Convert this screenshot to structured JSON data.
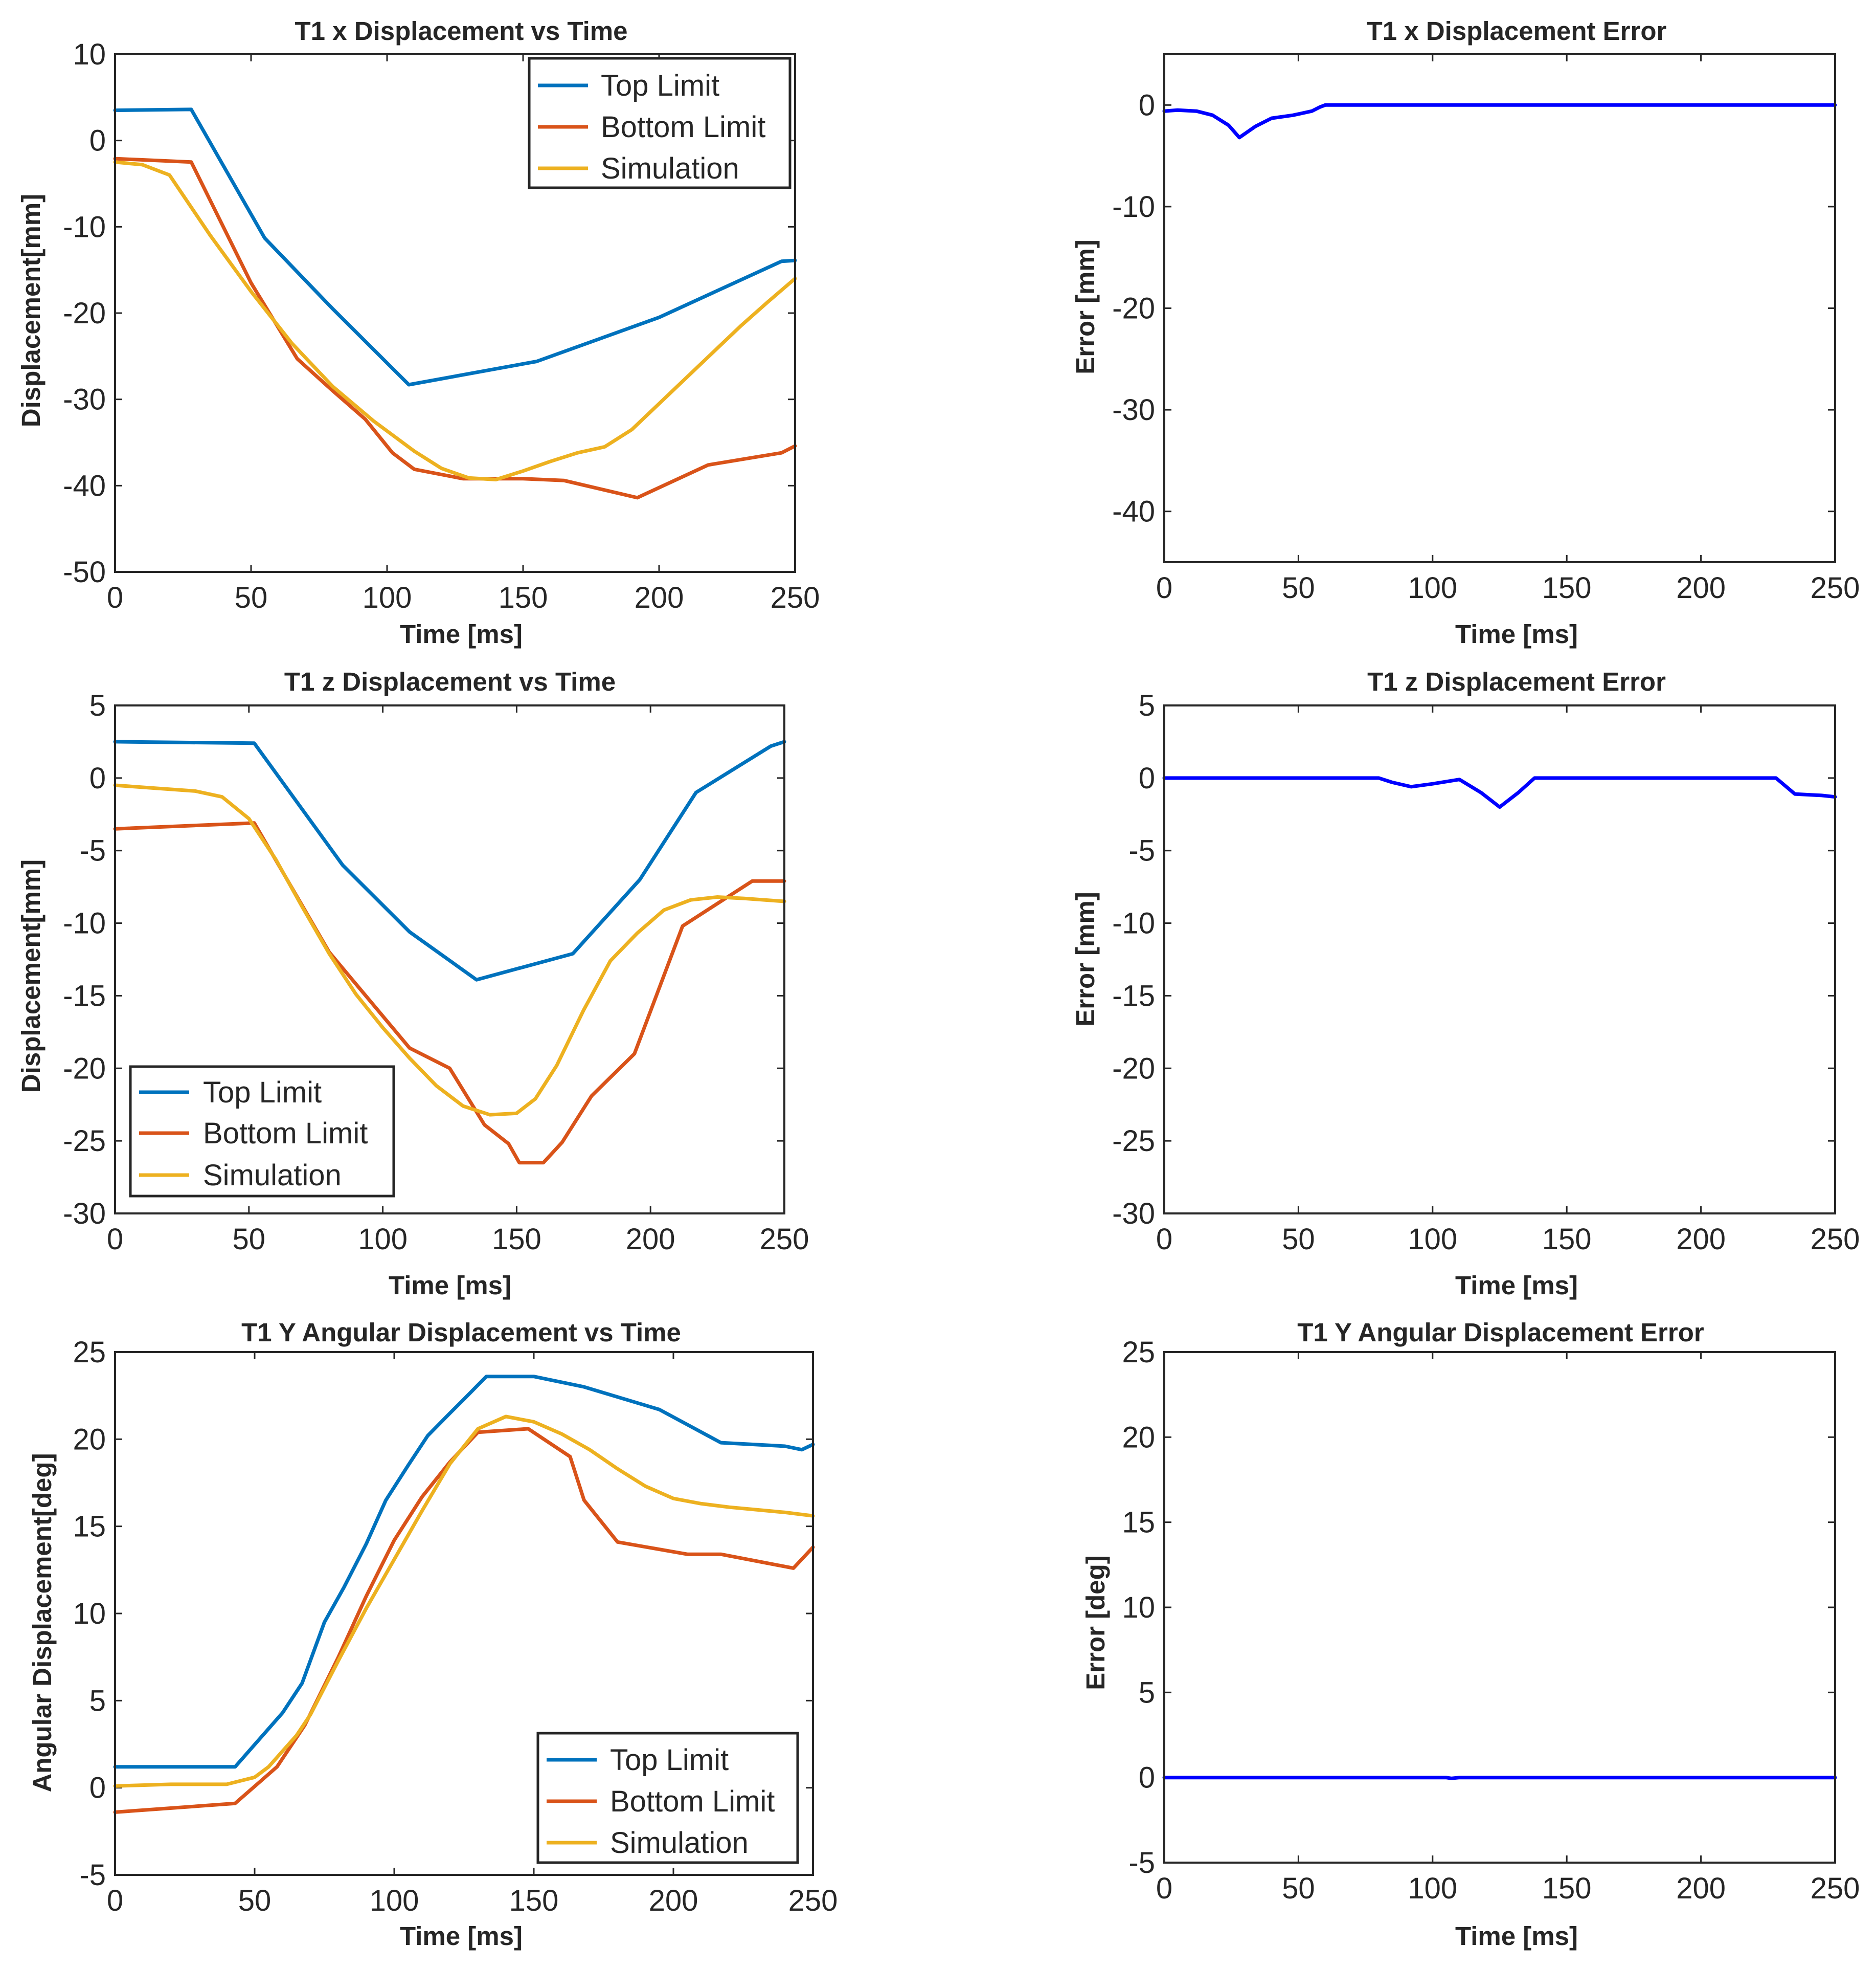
{
  "colors": {
    "top_limit": "#0072BD",
    "bottom_limit": "#D95319",
    "simulation": "#EDB120",
    "error": "#0000FF",
    "axes": "#262626"
  },
  "chart_data": [
    {
      "id": "p1",
      "type": "line",
      "title": "T1 x Displacement vs Time",
      "xlabel": "Time [ms]",
      "ylabel": "Displacement[mm]",
      "xlim": [
        0,
        250
      ],
      "ylim": [
        -50,
        10
      ],
      "xticks": [
        0,
        50,
        100,
        150,
        200,
        250
      ],
      "yticks": [
        -50,
        -40,
        -30,
        -20,
        -10,
        0,
        10
      ],
      "legend": "top-right",
      "series": [
        {
          "name": "Top Limit",
          "color_key": "top_limit",
          "x": [
            0,
            28,
            55,
            80,
            108,
            155,
            200,
            245,
            250
          ],
          "y": [
            3.5,
            3.6,
            -11.3,
            -19.5,
            -28.3,
            -25.6,
            -20.5,
            -14,
            -13.9
          ]
        },
        {
          "name": "Bottom Limit",
          "color_key": "bottom_limit",
          "x": [
            0,
            28,
            50,
            67,
            80,
            92,
            102,
            110,
            128,
            150,
            165,
            192,
            218,
            245,
            250
          ],
          "y": [
            -2.1,
            -2.5,
            -16.5,
            -25.3,
            -29,
            -32.3,
            -36.2,
            -38.1,
            -39.2,
            -39.2,
            -39.4,
            -41.4,
            -37.6,
            -36.2,
            -35.4
          ]
        },
        {
          "name": "Simulation",
          "color_key": "simulation",
          "x": [
            0,
            10,
            20,
            35,
            50,
            65,
            80,
            95,
            110,
            120,
            130,
            140,
            150,
            160,
            170,
            180,
            190,
            200,
            210,
            220,
            230,
            240,
            250
          ],
          "y": [
            -2.5,
            -2.8,
            -4,
            -11,
            -17.5,
            -23.5,
            -28.5,
            -32.5,
            -36,
            -38,
            -39.1,
            -39.3,
            -38.3,
            -37.2,
            -36.2,
            -35.5,
            -33.5,
            -30.5,
            -27.5,
            -24.5,
            -21.5,
            -18.7,
            -16
          ]
        }
      ]
    },
    {
      "id": "p2",
      "type": "line",
      "title": "T1 x Displacement Error",
      "xlabel": "Time [ms]",
      "ylabel": "Error [mm]",
      "xlim": [
        0,
        250
      ],
      "ylim": [
        -45,
        5
      ],
      "xticks": [
        0,
        50,
        100,
        150,
        200,
        250
      ],
      "yticks": [
        -40,
        -30,
        -20,
        -10,
        0
      ],
      "series": [
        {
          "name": "Error",
          "color_key": "error",
          "x": [
            0,
            5,
            12,
            18,
            24,
            28,
            34,
            40,
            48,
            55,
            58,
            60,
            100,
            150,
            200,
            250
          ],
          "y": [
            -0.6,
            -0.5,
            -0.6,
            -1,
            -2,
            -3.2,
            -2.1,
            -1.3,
            -1,
            -0.6,
            -0.2,
            0,
            0,
            0,
            0,
            0
          ]
        }
      ]
    },
    {
      "id": "p3",
      "type": "line",
      "title": "T1 z Displacement vs Time",
      "xlabel": "Time [ms]",
      "ylabel": "Displacement[mm]",
      "xlim": [
        0,
        250
      ],
      "ylim": [
        -30,
        5
      ],
      "xticks": [
        0,
        50,
        100,
        150,
        200,
        250
      ],
      "yticks": [
        -30,
        -25,
        -20,
        -15,
        -10,
        -5,
        0,
        5
      ],
      "legend": "bottom-left",
      "series": [
        {
          "name": "Top Limit",
          "color_key": "top_limit",
          "x": [
            0,
            52,
            85,
            110,
            135,
            171,
            196,
            217,
            245,
            250
          ],
          "y": [
            2.5,
            2.4,
            -6,
            -10.6,
            -13.9,
            -12.1,
            -7,
            -1,
            2.2,
            2.5
          ]
        },
        {
          "name": "Bottom Limit",
          "color_key": "bottom_limit",
          "x": [
            0,
            52,
            80,
            110,
            125,
            138,
            147,
            151,
            160,
            167,
            178,
            194,
            212,
            238,
            250
          ],
          "y": [
            -3.5,
            -3.1,
            -12,
            -18.6,
            -20,
            -23.9,
            -25.2,
            -26.5,
            -26.5,
            -25.1,
            -21.9,
            -19,
            -10.2,
            -7.1,
            -7.1
          ]
        },
        {
          "name": "Simulation",
          "color_key": "simulation",
          "x": [
            0,
            15,
            30,
            40,
            50,
            60,
            70,
            80,
            90,
            100,
            110,
            120,
            130,
            140,
            150,
            157,
            165,
            175,
            185,
            195,
            205,
            215,
            225,
            235,
            250
          ],
          "y": [
            -0.5,
            -0.7,
            -0.9,
            -1.3,
            -2.8,
            -5.6,
            -8.9,
            -12.1,
            -14.9,
            -17.2,
            -19.3,
            -21.2,
            -22.6,
            -23.2,
            -23.1,
            -22.1,
            -19.8,
            -16,
            -12.6,
            -10.7,
            -9.1,
            -8.4,
            -8.2,
            -8.3,
            -8.5
          ]
        }
      ]
    },
    {
      "id": "p4",
      "type": "line",
      "title": "T1 z Displacement Error",
      "xlabel": "Time [ms]",
      "ylabel": "Error [mm]",
      "xlim": [
        0,
        250
      ],
      "ylim": [
        -30,
        5
      ],
      "xticks": [
        0,
        50,
        100,
        150,
        200,
        250
      ],
      "yticks": [
        -30,
        -25,
        -20,
        -15,
        -10,
        -5,
        0,
        5
      ],
      "series": [
        {
          "name": "Error",
          "color_key": "error",
          "x": [
            0,
            50,
            80,
            85,
            92,
            100,
            110,
            118,
            125,
            132,
            138,
            150,
            200,
            228,
            235,
            245,
            250
          ],
          "y": [
            0,
            0,
            0,
            -0.3,
            -0.6,
            -0.4,
            -0.1,
            -1,
            -2,
            -1,
            0,
            0,
            0,
            0,
            -1.1,
            -1.2,
            -1.3
          ]
        }
      ]
    },
    {
      "id": "p5",
      "type": "line",
      "title": "T1 Y Angular Displacement vs Time",
      "xlabel": "Time [ms]",
      "ylabel": "Angular Displacement[deg]",
      "xlim": [
        0,
        250
      ],
      "ylim": [
        -5,
        25
      ],
      "xticks": [
        0,
        50,
        100,
        150,
        200,
        250
      ],
      "yticks": [
        -5,
        0,
        5,
        10,
        15,
        20,
        25
      ],
      "legend": "bottom-right",
      "series": [
        {
          "name": "Top Limit",
          "color_key": "top_limit",
          "x": [
            0,
            43,
            60,
            67,
            75,
            82,
            90,
            97,
            105,
            112,
            120,
            125,
            133,
            150,
            168,
            195,
            217,
            240,
            246,
            250
          ],
          "y": [
            1.2,
            1.2,
            4.3,
            6,
            9.5,
            11.5,
            14,
            16.5,
            18.5,
            20.2,
            21.5,
            22.3,
            23.6,
            23.6,
            23,
            21.7,
            19.8,
            19.6,
            19.4,
            19.7
          ]
        },
        {
          "name": "Bottom Limit",
          "color_key": "bottom_limit",
          "x": [
            0,
            43,
            58,
            68,
            80,
            90,
            100,
            110,
            120,
            130,
            148,
            163,
            168,
            180,
            205,
            217,
            243,
            250
          ],
          "y": [
            -1.4,
            -0.9,
            1.2,
            3.6,
            7.5,
            11,
            14.2,
            16.7,
            18.7,
            20.4,
            20.6,
            19,
            16.5,
            14.1,
            13.4,
            13.4,
            12.6,
            13.8
          ]
        },
        {
          "name": "Simulation",
          "color_key": "simulation",
          "x": [
            0,
            20,
            40,
            50,
            55,
            60,
            65,
            70,
            80,
            90,
            100,
            110,
            120,
            130,
            140,
            150,
            160,
            170,
            180,
            190,
            200,
            210,
            220,
            240,
            250
          ],
          "y": [
            0.1,
            0.2,
            0.2,
            0.6,
            1.2,
            2.1,
            3,
            4.2,
            7.3,
            10.3,
            13.1,
            15.9,
            18.6,
            20.6,
            21.3,
            21,
            20.3,
            19.4,
            18.3,
            17.3,
            16.6,
            16.3,
            16.1,
            15.8,
            15.6
          ]
        }
      ]
    },
    {
      "id": "p6",
      "type": "line",
      "title": "T1 Y Angular Displacement Error",
      "xlabel": "Time [ms]",
      "ylabel": "Error [deg]",
      "xlim": [
        0,
        250
      ],
      "ylim": [
        -5,
        25
      ],
      "xticks": [
        0,
        50,
        100,
        150,
        200,
        250
      ],
      "yticks": [
        -5,
        0,
        5,
        10,
        15,
        20,
        25
      ],
      "series": [
        {
          "name": "Error",
          "color_key": "error",
          "x": [
            0,
            105,
            107,
            110,
            250
          ],
          "y": [
            0,
            0,
            -0.05,
            0,
            0
          ]
        }
      ]
    }
  ]
}
